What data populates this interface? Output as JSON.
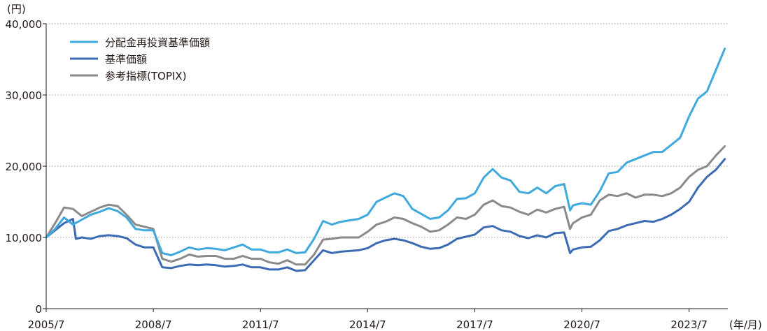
{
  "chart_data": {
    "type": "line",
    "y_unit_label": "(円)",
    "x_unit_label": "(年/月)",
    "ylim": [
      0,
      40000
    ],
    "yticks": [
      0,
      10000,
      20000,
      30000,
      40000
    ],
    "ytick_labels": [
      "0",
      "10,000",
      "20,000",
      "30,000",
      "40,000"
    ],
    "xlim": [
      "2005/7",
      "2024/8"
    ],
    "xticks": [
      "2005/7",
      "2008/7",
      "2011/7",
      "2014/7",
      "2017/7",
      "2020/7",
      "2023/7"
    ],
    "grid": "horizontal dotted",
    "legend_position": "top-left",
    "colors": {
      "reinvested": "#3fa9dd",
      "nav": "#3c6bb4",
      "topix": "#8a8a8a",
      "axis": "#231815",
      "grid": "#9a9a9a"
    },
    "series": [
      {
        "name": "分配金再投資基準価額",
        "color_key": "reinvested",
        "x": [
          "2005/7",
          "2005/10",
          "2006/1",
          "2006/4",
          "2006/7",
          "2006/10",
          "2007/1",
          "2007/4",
          "2007/7",
          "2007/10",
          "2008/1",
          "2008/4",
          "2008/7",
          "2008/10",
          "2009/1",
          "2009/4",
          "2009/7",
          "2009/10",
          "2010/1",
          "2010/4",
          "2010/7",
          "2010/10",
          "2011/1",
          "2011/4",
          "2011/7",
          "2011/10",
          "2012/1",
          "2012/4",
          "2012/7",
          "2012/10",
          "2013/1",
          "2013/4",
          "2013/7",
          "2013/10",
          "2014/1",
          "2014/4",
          "2014/7",
          "2014/10",
          "2015/1",
          "2015/4",
          "2015/7",
          "2015/10",
          "2016/1",
          "2016/4",
          "2016/7",
          "2016/10",
          "2017/1",
          "2017/4",
          "2017/7",
          "2017/10",
          "2018/1",
          "2018/4",
          "2018/7",
          "2018/10",
          "2019/1",
          "2019/4",
          "2019/7",
          "2019/10",
          "2020/1",
          "2020/3",
          "2020/4",
          "2020/7",
          "2020/10",
          "2021/1",
          "2021/4",
          "2021/7",
          "2021/10",
          "2022/1",
          "2022/4",
          "2022/7",
          "2022/10",
          "2023/1",
          "2023/4",
          "2023/7",
          "2023/10",
          "2024/1",
          "2024/4",
          "2024/7"
        ],
        "values": [
          10000,
          11200,
          12800,
          11800,
          12500,
          13200,
          13600,
          14100,
          13700,
          12800,
          11200,
          11000,
          11000,
          7800,
          7500,
          8000,
          8600,
          8300,
          8500,
          8400,
          8200,
          8600,
          9000,
          8300,
          8300,
          7900,
          7900,
          8300,
          7800,
          7900,
          9800,
          12300,
          11800,
          12200,
          12400,
          12600,
          13200,
          15000,
          15600,
          16200,
          15800,
          14000,
          13300,
          12600,
          12800,
          13800,
          15400,
          15500,
          16200,
          18400,
          19600,
          18400,
          18000,
          16400,
          16200,
          17000,
          16200,
          17200,
          17500,
          13800,
          14500,
          14800,
          14600,
          16500,
          19000,
          19200,
          20500,
          21000,
          21500,
          22000,
          22000,
          23000,
          24000,
          27000,
          29500,
          30500,
          33500,
          36500
        ]
      },
      {
        "name": "基準価額",
        "color_key": "nav",
        "x": [
          "2005/7",
          "2005/10",
          "2006/1",
          "2006/4",
          "2006/5",
          "2006/7",
          "2006/10",
          "2007/1",
          "2007/4",
          "2007/7",
          "2007/10",
          "2008/1",
          "2008/4",
          "2008/7",
          "2008/10",
          "2009/1",
          "2009/4",
          "2009/7",
          "2009/10",
          "2010/1",
          "2010/4",
          "2010/7",
          "2010/10",
          "2011/1",
          "2011/4",
          "2011/7",
          "2011/10",
          "2012/1",
          "2012/4",
          "2012/7",
          "2012/10",
          "2013/1",
          "2013/4",
          "2013/7",
          "2013/10",
          "2014/1",
          "2014/4",
          "2014/7",
          "2014/10",
          "2015/1",
          "2015/4",
          "2015/7",
          "2015/10",
          "2016/1",
          "2016/4",
          "2016/7",
          "2016/10",
          "2017/1",
          "2017/4",
          "2017/7",
          "2017/10",
          "2018/1",
          "2018/4",
          "2018/7",
          "2018/10",
          "2019/1",
          "2019/4",
          "2019/7",
          "2019/10",
          "2020/1",
          "2020/3",
          "2020/4",
          "2020/7",
          "2020/10",
          "2021/1",
          "2021/4",
          "2021/7",
          "2021/10",
          "2022/1",
          "2022/4",
          "2022/7",
          "2022/10",
          "2023/1",
          "2023/4",
          "2023/7",
          "2023/10",
          "2024/1",
          "2024/4",
          "2024/7"
        ],
        "values": [
          10000,
          11000,
          12000,
          12600,
          9800,
          10000,
          9800,
          10200,
          10300,
          10200,
          9900,
          9000,
          8600,
          8600,
          5800,
          5700,
          6000,
          6200,
          6100,
          6200,
          6100,
          5900,
          6000,
          6200,
          5800,
          5800,
          5500,
          5500,
          5800,
          5300,
          5400,
          6800,
          8200,
          7800,
          8000,
          8100,
          8200,
          8500,
          9200,
          9600,
          9800,
          9600,
          9200,
          8700,
          8400,
          8500,
          9000,
          9800,
          10100,
          10400,
          11400,
          11600,
          11000,
          10800,
          10200,
          9900,
          10300,
          10000,
          10600,
          10700,
          7800,
          8300,
          8600,
          8700,
          9600,
          10900,
          11200,
          11700,
          12000,
          12300,
          12200,
          12600,
          13200,
          14000,
          15000,
          17000,
          18500,
          19500,
          21000
        ]
      },
      {
        "name": "参考指標(TOPIX)",
        "color_key": "topix",
        "x": [
          "2005/7",
          "2005/10",
          "2006/1",
          "2006/4",
          "2006/7",
          "2006/10",
          "2007/1",
          "2007/4",
          "2007/7",
          "2007/10",
          "2008/1",
          "2008/4",
          "2008/7",
          "2008/10",
          "2009/1",
          "2009/4",
          "2009/7",
          "2009/10",
          "2010/1",
          "2010/4",
          "2010/7",
          "2010/10",
          "2011/1",
          "2011/4",
          "2011/7",
          "2011/10",
          "2012/1",
          "2012/4",
          "2012/7",
          "2012/10",
          "2013/1",
          "2013/4",
          "2013/7",
          "2013/10",
          "2014/1",
          "2014/4",
          "2014/7",
          "2014/10",
          "2015/1",
          "2015/4",
          "2015/7",
          "2015/10",
          "2016/1",
          "2016/4",
          "2016/7",
          "2016/10",
          "2017/1",
          "2017/4",
          "2017/7",
          "2017/10",
          "2018/1",
          "2018/4",
          "2018/7",
          "2018/10",
          "2019/1",
          "2019/4",
          "2019/7",
          "2019/10",
          "2020/1",
          "2020/3",
          "2020/4",
          "2020/7",
          "2020/10",
          "2021/1",
          "2021/4",
          "2021/7",
          "2021/10",
          "2022/1",
          "2022/4",
          "2022/7",
          "2022/10",
          "2023/1",
          "2023/4",
          "2023/7",
          "2023/10",
          "2024/1",
          "2024/4",
          "2024/7"
        ],
        "values": [
          10000,
          12000,
          14200,
          14000,
          13000,
          13600,
          14200,
          14600,
          14400,
          13200,
          11800,
          11500,
          11200,
          7000,
          6600,
          7000,
          7600,
          7300,
          7400,
          7400,
          7000,
          7000,
          7400,
          7000,
          7000,
          6500,
          6300,
          6800,
          6200,
          6200,
          7600,
          9700,
          9800,
          10000,
          10000,
          10000,
          10800,
          11800,
          12200,
          12800,
          12600,
          12000,
          11500,
          10800,
          11000,
          11800,
          12800,
          12600,
          13200,
          14600,
          15200,
          14400,
          14200,
          13600,
          13200,
          13900,
          13500,
          14000,
          14300,
          11200,
          12000,
          12800,
          13200,
          15200,
          16000,
          15800,
          16200,
          15600,
          16000,
          16000,
          15800,
          16200,
          17000,
          18500,
          19500,
          20000,
          21500,
          22800
        ]
      }
    ]
  }
}
